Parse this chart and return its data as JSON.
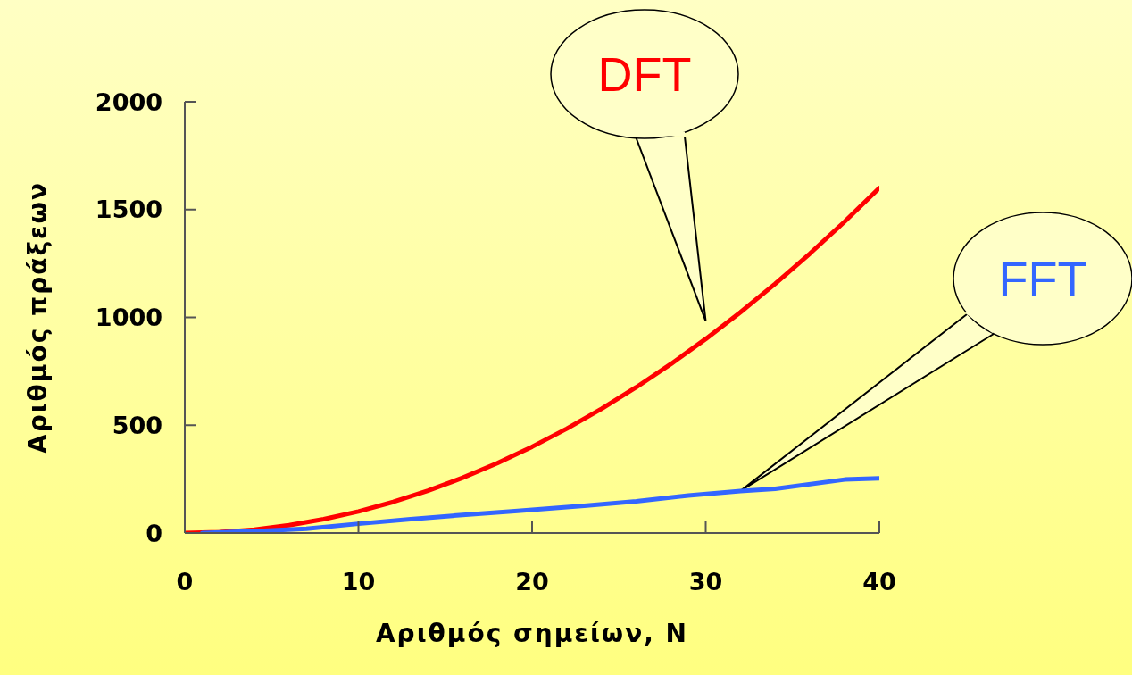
{
  "chart_data": {
    "type": "line",
    "xlabel": "Αριθμός σημείων, N",
    "ylabel": "Αριθμός πράξεων",
    "xlim": [
      0,
      40
    ],
    "xticks": [
      0,
      10,
      20,
      30,
      40
    ],
    "ylim": [
      0,
      2000
    ],
    "yticks": [
      0,
      500,
      1000,
      1500,
      2000
    ],
    "grid": false,
    "legend": false,
    "marker": "none",
    "line_style": "solid",
    "series": [
      {
        "name": "DFT",
        "color": "#ff0000",
        "x": [
          0,
          2,
          4,
          6,
          8,
          10,
          12,
          14,
          16,
          18,
          20,
          22,
          24,
          26,
          28,
          30,
          32,
          34,
          36,
          38,
          40
        ],
        "values": [
          0,
          4,
          16,
          36,
          64,
          100,
          144,
          196,
          256,
          324,
          400,
          484,
          576,
          676,
          784,
          900,
          1024,
          1156,
          1296,
          1444,
          1600
        ]
      },
      {
        "name": "FFT",
        "color": "#3366ff",
        "x": [
          1,
          4,
          7,
          10,
          13,
          16,
          19,
          23,
          26,
          29,
          32,
          34,
          38,
          40
        ],
        "values": [
          0,
          8,
          20,
          43,
          64,
          84,
          101,
          126,
          147,
          174,
          195,
          205,
          248,
          254
        ]
      }
    ]
  }
}
